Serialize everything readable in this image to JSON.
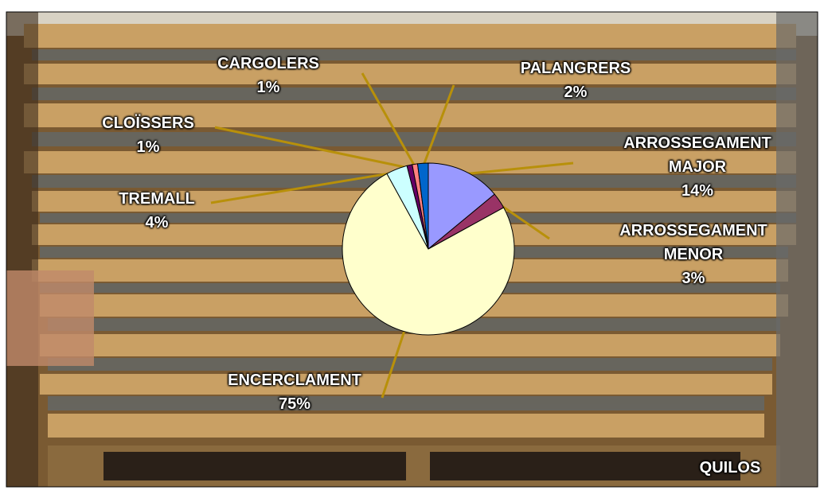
{
  "chart_data": {
    "type": "pie",
    "categories": [
      "ARROSSEGAMENT MAJOR",
      "ARROSSEGAMENT MENOR",
      "ENCERCLAMENT",
      "TREMALL",
      "CLOÏSSERS",
      "CARGOLERS",
      "PALANGRERS"
    ],
    "values": [
      14,
      3,
      75,
      4,
      1,
      1,
      2
    ],
    "value_labels": [
      "14%",
      "3%",
      "75%",
      "4%",
      "1%",
      "1%",
      "2%"
    ],
    "colors": [
      "#9999ff",
      "#993366",
      "#ffffcc",
      "#ccffff",
      "#660066",
      "#ff8080",
      "#0066cc"
    ],
    "annotation": "QUILOS"
  }
}
